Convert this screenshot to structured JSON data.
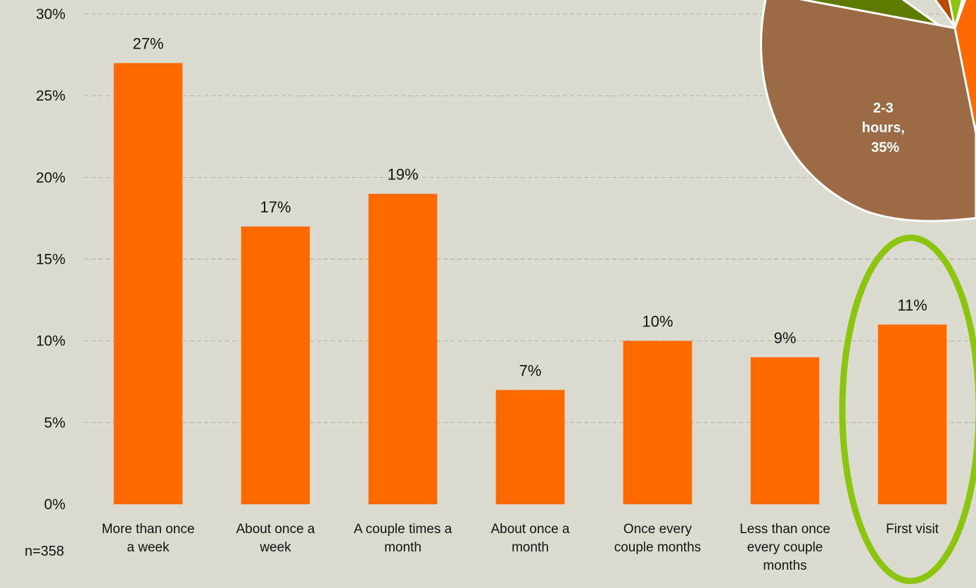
{
  "chart_data": [
    {
      "type": "bar",
      "categories": [
        [
          "More than once",
          "a week"
        ],
        [
          "About once a",
          "week"
        ],
        [
          "A couple times a",
          "month"
        ],
        [
          "About once a",
          "month"
        ],
        [
          "Once every",
          "couple months"
        ],
        [
          "Less than once",
          "every couple",
          "months"
        ],
        [
          "First visit"
        ]
      ],
      "values": [
        27,
        17,
        19,
        7,
        10,
        9,
        11
      ],
      "value_labels": [
        "27%",
        "17%",
        "19%",
        "7%",
        "10%",
        "9%",
        "11%"
      ],
      "ylim": [
        0,
        30
      ],
      "yticks": [
        0,
        5,
        10,
        15,
        20,
        25,
        30
      ],
      "ytick_labels": [
        "0%",
        "5%",
        "10%",
        "15%",
        "20%",
        "25%",
        "30%"
      ],
      "grid": true,
      "bar_color": "#ff6a00",
      "highlight_color": "#8cc510",
      "highlighted_category": "First visit",
      "sample_size": "n=358"
    },
    {
      "type": "pie",
      "partial": true,
      "slices": [
        {
          "label": "2-3 hours, 35%",
          "label_lines": [
            "2-3",
            "hours,",
            "35%"
          ],
          "value": 35,
          "color": "#9a6b45"
        }
      ],
      "other_slice_colors": [
        "#5e7a00",
        "#b84a00",
        "#8cc510",
        "#ff6a00"
      ]
    }
  ]
}
